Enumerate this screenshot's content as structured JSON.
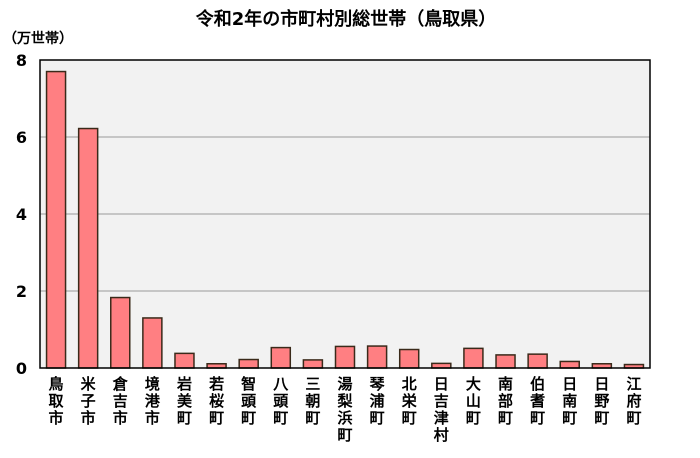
{
  "chart_data": {
    "type": "bar",
    "title": "令和2年の市町村別総世帯（鳥取県）",
    "unit_label": "（万世帯）",
    "categories": [
      "鳥取市",
      "米子市",
      "倉吉市",
      "境港市",
      "岩美町",
      "若桜町",
      "智頭町",
      "八頭町",
      "三朝町",
      "湯梨浜町",
      "琴浦町",
      "北栄町",
      "日吉津村",
      "大山町",
      "南部町",
      "伯耆町",
      "日南町",
      "日野町",
      "江府町"
    ],
    "values": [
      7.7,
      6.22,
      1.83,
      1.3,
      0.38,
      0.11,
      0.22,
      0.53,
      0.21,
      0.56,
      0.57,
      0.48,
      0.12,
      0.51,
      0.34,
      0.36,
      0.17,
      0.11,
      0.09
    ],
    "ylim": [
      0,
      8
    ],
    "yticks": [
      0,
      2,
      4,
      6,
      8
    ],
    "grid": true,
    "colors": {
      "bar_fill": "#ff7f82",
      "bar_stroke": "#3a2a1a",
      "plot_bg": "#f2f2f2",
      "grid": "#9a9a9a",
      "frame": "#000000"
    }
  }
}
